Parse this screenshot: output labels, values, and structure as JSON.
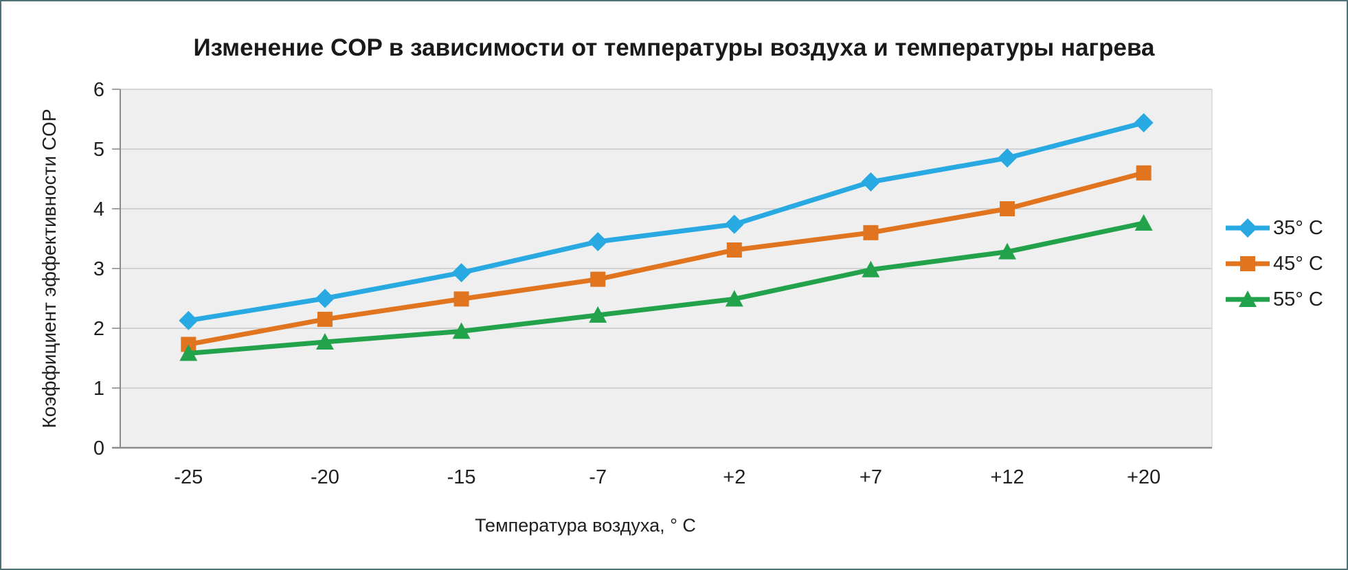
{
  "chart_data": {
    "type": "line",
    "title": "Изменение COP в зависимости от температуры воздуха и температуры нагрева",
    "xlabel": "Температура воздуха, ° C",
    "ylabel": "Коэффициент эффективности COP",
    "categories": [
      "-25",
      "-20",
      "-15",
      "-7",
      "+2",
      "+7",
      "+12",
      "+20"
    ],
    "ylim": [
      0,
      6
    ],
    "yticks": [
      "0",
      "1",
      "2",
      "3",
      "4",
      "5",
      "6"
    ],
    "grid": true,
    "legend_position": "right",
    "colors": {
      "plot_bg": "#EFEFEF",
      "grid_line": "#C9C9C9",
      "axis_line": "#8C8C8C",
      "plot_right_border": "#D9D9D9",
      "text": "#1F1F1F",
      "frame_border": "#4E7175"
    },
    "series": [
      {
        "name": "35° C",
        "marker": "diamond",
        "color": "#29A9E1",
        "values": [
          2.13,
          2.5,
          2.93,
          3.45,
          3.74,
          4.45,
          4.85,
          5.44
        ]
      },
      {
        "name": "45° C",
        "marker": "square",
        "color": "#E0741F",
        "values": [
          1.73,
          2.15,
          2.49,
          2.82,
          3.31,
          3.6,
          4.0,
          4.6
        ]
      },
      {
        "name": "55° C",
        "marker": "triangle",
        "color": "#23A24C",
        "values": [
          1.58,
          1.77,
          1.95,
          2.22,
          2.49,
          2.98,
          3.28,
          3.76
        ]
      }
    ]
  }
}
